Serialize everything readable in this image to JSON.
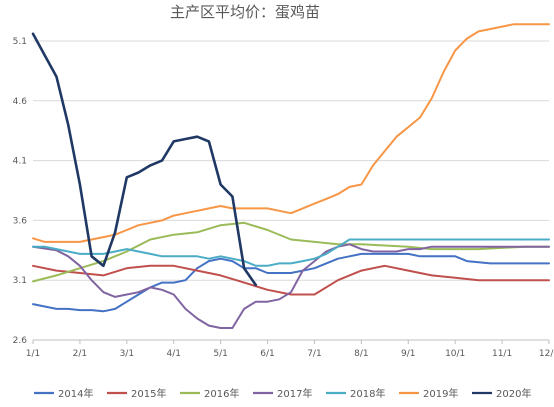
{
  "chart_data": {
    "type": "line",
    "title": "主产区平均价：蛋鸡苗",
    "xlabel": "",
    "ylabel": "",
    "ylim": [
      2.6,
      5.2
    ],
    "y_ticks": [
      "2.6",
      "3.1",
      "3.6",
      "4.1",
      "4.6",
      "5.1"
    ],
    "x_ticks": [
      "1/1",
      "2/1",
      "3/1",
      "4/1",
      "5/1",
      "6/1",
      "7/1",
      "8/1",
      "9/1",
      "10/1",
      "11/1",
      "12/1"
    ],
    "grid": true,
    "legend_position": "bottom",
    "series": [
      {
        "name": "2014年",
        "color": "#4472c4",
        "points": [
          [
            0,
            2.9
          ],
          [
            0.5,
            2.88
          ],
          [
            1,
            2.86
          ],
          [
            1.5,
            2.86
          ],
          [
            2,
            2.85
          ],
          [
            2.5,
            2.85
          ],
          [
            3,
            2.84
          ],
          [
            3.5,
            2.86
          ],
          [
            4,
            2.92
          ],
          [
            4.5,
            2.98
          ],
          [
            5,
            3.04
          ],
          [
            5.5,
            3.08
          ],
          [
            6,
            3.08
          ],
          [
            6.5,
            3.1
          ],
          [
            7,
            3.2
          ],
          [
            7.5,
            3.26
          ],
          [
            8,
            3.28
          ],
          [
            8.5,
            3.26
          ],
          [
            9,
            3.2
          ],
          [
            9.5,
            3.2
          ],
          [
            10,
            3.16
          ],
          [
            10.5,
            3.16
          ],
          [
            11,
            3.16
          ],
          [
            11.5,
            3.18
          ],
          [
            12,
            3.2
          ],
          [
            12.5,
            3.24
          ],
          [
            13,
            3.28
          ],
          [
            13.5,
            3.3
          ],
          [
            14,
            3.32
          ],
          [
            14.5,
            3.32
          ],
          [
            15,
            3.32
          ],
          [
            15.5,
            3.32
          ],
          [
            16,
            3.32
          ],
          [
            16.5,
            3.3
          ],
          [
            17,
            3.3
          ],
          [
            17.5,
            3.3
          ],
          [
            18,
            3.3
          ],
          [
            18.5,
            3.26
          ],
          [
            19,
            3.25
          ],
          [
            19.5,
            3.24
          ],
          [
            20,
            3.24
          ],
          [
            20.5,
            3.24
          ],
          [
            21,
            3.24
          ],
          [
            21.5,
            3.24
          ],
          [
            22,
            3.24
          ]
        ]
      },
      {
        "name": "2015年",
        "color": "#c0504d",
        "points": [
          [
            0,
            3.22
          ],
          [
            1,
            3.18
          ],
          [
            2,
            3.16
          ],
          [
            3,
            3.14
          ],
          [
            4,
            3.2
          ],
          [
            5,
            3.22
          ],
          [
            6,
            3.22
          ],
          [
            7,
            3.18
          ],
          [
            8,
            3.14
          ],
          [
            9,
            3.08
          ],
          [
            10,
            3.02
          ],
          [
            11,
            2.98
          ],
          [
            12,
            2.98
          ],
          [
            13,
            3.1
          ],
          [
            14,
            3.18
          ],
          [
            15,
            3.22
          ],
          [
            16,
            3.18
          ],
          [
            17,
            3.14
          ],
          [
            18,
            3.12
          ],
          [
            19,
            3.1
          ],
          [
            20,
            3.1
          ],
          [
            21,
            3.1
          ],
          [
            22,
            3.1
          ]
        ]
      },
      {
        "name": "2016年",
        "color": "#9bbb59",
        "points": [
          [
            0,
            3.09
          ],
          [
            1,
            3.14
          ],
          [
            2,
            3.2
          ],
          [
            3,
            3.26
          ],
          [
            4,
            3.34
          ],
          [
            5,
            3.44
          ],
          [
            6,
            3.48
          ],
          [
            7,
            3.5
          ],
          [
            8,
            3.56
          ],
          [
            9,
            3.58
          ],
          [
            10,
            3.52
          ],
          [
            11,
            3.44
          ],
          [
            12,
            3.42
          ],
          [
            13,
            3.4
          ],
          [
            14,
            3.4
          ],
          [
            15,
            3.39
          ],
          [
            16,
            3.38
          ],
          [
            17,
            3.36
          ],
          [
            18,
            3.36
          ],
          [
            19,
            3.36
          ],
          [
            20,
            3.37
          ],
          [
            21,
            3.38
          ],
          [
            22,
            3.38
          ]
        ]
      },
      {
        "name": "2017年",
        "color": "#8064a2",
        "points": [
          [
            0,
            3.38
          ],
          [
            1,
            3.35
          ],
          [
            1.5,
            3.3
          ],
          [
            2,
            3.22
          ],
          [
            2.5,
            3.1
          ],
          [
            3,
            3.0
          ],
          [
            3.5,
            2.96
          ],
          [
            4,
            2.98
          ],
          [
            4.5,
            3.0
          ],
          [
            5,
            3.04
          ],
          [
            5.5,
            3.02
          ],
          [
            6,
            2.98
          ],
          [
            6.5,
            2.86
          ],
          [
            7,
            2.78
          ],
          [
            7.5,
            2.72
          ],
          [
            8,
            2.7
          ],
          [
            8.5,
            2.7
          ],
          [
            9,
            2.86
          ],
          [
            9.5,
            2.92
          ],
          [
            10,
            2.92
          ],
          [
            10.5,
            2.94
          ],
          [
            11,
            3.0
          ],
          [
            11.5,
            3.18
          ],
          [
            12,
            3.26
          ],
          [
            12.5,
            3.34
          ],
          [
            13,
            3.38
          ],
          [
            13.5,
            3.4
          ],
          [
            14,
            3.36
          ],
          [
            14.5,
            3.34
          ],
          [
            15,
            3.34
          ],
          [
            15.5,
            3.34
          ],
          [
            16,
            3.36
          ],
          [
            16.5,
            3.36
          ],
          [
            17,
            3.38
          ],
          [
            17.5,
            3.38
          ],
          [
            18,
            3.38
          ],
          [
            18.5,
            3.38
          ],
          [
            19,
            3.38
          ],
          [
            19.5,
            3.38
          ],
          [
            20,
            3.38
          ],
          [
            20.5,
            3.38
          ],
          [
            21,
            3.38
          ],
          [
            22,
            3.38
          ]
        ]
      },
      {
        "name": "2018年",
        "color": "#4bacc6",
        "points": [
          [
            0,
            3.38
          ],
          [
            0.5,
            3.38
          ],
          [
            1,
            3.36
          ],
          [
            1.5,
            3.34
          ],
          [
            2,
            3.32
          ],
          [
            2.5,
            3.32
          ],
          [
            3,
            3.32
          ],
          [
            3.5,
            3.34
          ],
          [
            4,
            3.36
          ],
          [
            4.5,
            3.34
          ],
          [
            5,
            3.32
          ],
          [
            5.5,
            3.3
          ],
          [
            6,
            3.3
          ],
          [
            6.5,
            3.3
          ],
          [
            7,
            3.3
          ],
          [
            7.5,
            3.28
          ],
          [
            8,
            3.3
          ],
          [
            8.5,
            3.28
          ],
          [
            9,
            3.26
          ],
          [
            9.5,
            3.22
          ],
          [
            10,
            3.22
          ],
          [
            10.5,
            3.24
          ],
          [
            11,
            3.24
          ],
          [
            11.5,
            3.26
          ],
          [
            12,
            3.28
          ],
          [
            12.5,
            3.32
          ],
          [
            13,
            3.38
          ],
          [
            13.5,
            3.44
          ],
          [
            14,
            3.44
          ],
          [
            14.5,
            3.44
          ],
          [
            15,
            3.44
          ],
          [
            15.5,
            3.44
          ],
          [
            16,
            3.44
          ],
          [
            16.5,
            3.44
          ],
          [
            17,
            3.44
          ],
          [
            17.5,
            3.44
          ],
          [
            18,
            3.44
          ],
          [
            18.5,
            3.44
          ],
          [
            19,
            3.44
          ],
          [
            19.5,
            3.44
          ],
          [
            20,
            3.44
          ],
          [
            20.5,
            3.44
          ],
          [
            21,
            3.44
          ],
          [
            21.5,
            3.44
          ],
          [
            22,
            3.44
          ]
        ]
      },
      {
        "name": "2019年",
        "color": "#f79646",
        "points": [
          [
            0,
            3.45
          ],
          [
            0.5,
            3.42
          ],
          [
            1,
            3.42
          ],
          [
            1.5,
            3.42
          ],
          [
            2,
            3.42
          ],
          [
            2.5,
            3.44
          ],
          [
            3,
            3.46
          ],
          [
            3.5,
            3.48
          ],
          [
            4,
            3.52
          ],
          [
            4.5,
            3.56
          ],
          [
            5,
            3.58
          ],
          [
            5.5,
            3.6
          ],
          [
            6,
            3.64
          ],
          [
            6.5,
            3.66
          ],
          [
            7,
            3.68
          ],
          [
            7.5,
            3.7
          ],
          [
            8,
            3.72
          ],
          [
            8.5,
            3.7
          ],
          [
            9,
            3.7
          ],
          [
            9.5,
            3.7
          ],
          [
            10,
            3.7
          ],
          [
            10.5,
            3.68
          ],
          [
            11,
            3.66
          ],
          [
            11.5,
            3.7
          ],
          [
            12,
            3.74
          ],
          [
            12.5,
            3.78
          ],
          [
            13,
            3.82
          ],
          [
            13.5,
            3.88
          ],
          [
            14,
            3.9
          ],
          [
            14.5,
            4.06
          ],
          [
            15,
            4.18
          ],
          [
            15.5,
            4.3
          ],
          [
            16,
            4.38
          ],
          [
            16.5,
            4.46
          ],
          [
            17,
            4.62
          ],
          [
            17.5,
            4.84
          ],
          [
            18,
            5.02
          ],
          [
            18.5,
            5.12
          ],
          [
            19,
            5.18
          ],
          [
            19.5,
            5.2
          ],
          [
            20,
            5.22
          ],
          [
            20.5,
            5.24
          ],
          [
            21,
            5.24
          ],
          [
            21.5,
            5.24
          ],
          [
            22,
            5.24
          ]
        ]
      },
      {
        "name": "2020年",
        "color": "#1f3864",
        "points": [
          [
            0,
            5.16
          ],
          [
            0.5,
            4.98
          ],
          [
            1,
            4.8
          ],
          [
            1.5,
            4.4
          ],
          [
            2,
            3.9
          ],
          [
            2.5,
            3.3
          ],
          [
            3,
            3.22
          ],
          [
            3.5,
            3.5
          ],
          [
            4,
            3.96
          ],
          [
            4.5,
            4.0
          ],
          [
            5,
            4.06
          ],
          [
            5.5,
            4.1
          ],
          [
            6,
            4.26
          ],
          [
            6.5,
            4.28
          ],
          [
            7,
            4.3
          ],
          [
            7.5,
            4.26
          ],
          [
            8,
            3.9
          ],
          [
            8.5,
            3.8
          ],
          [
            9,
            3.2
          ],
          [
            9.5,
            3.06
          ]
        ]
      }
    ],
    "legend": [
      "2014年",
      "2015年",
      "2016年",
      "2017年",
      "2018年",
      "2019年",
      "2020年"
    ]
  }
}
